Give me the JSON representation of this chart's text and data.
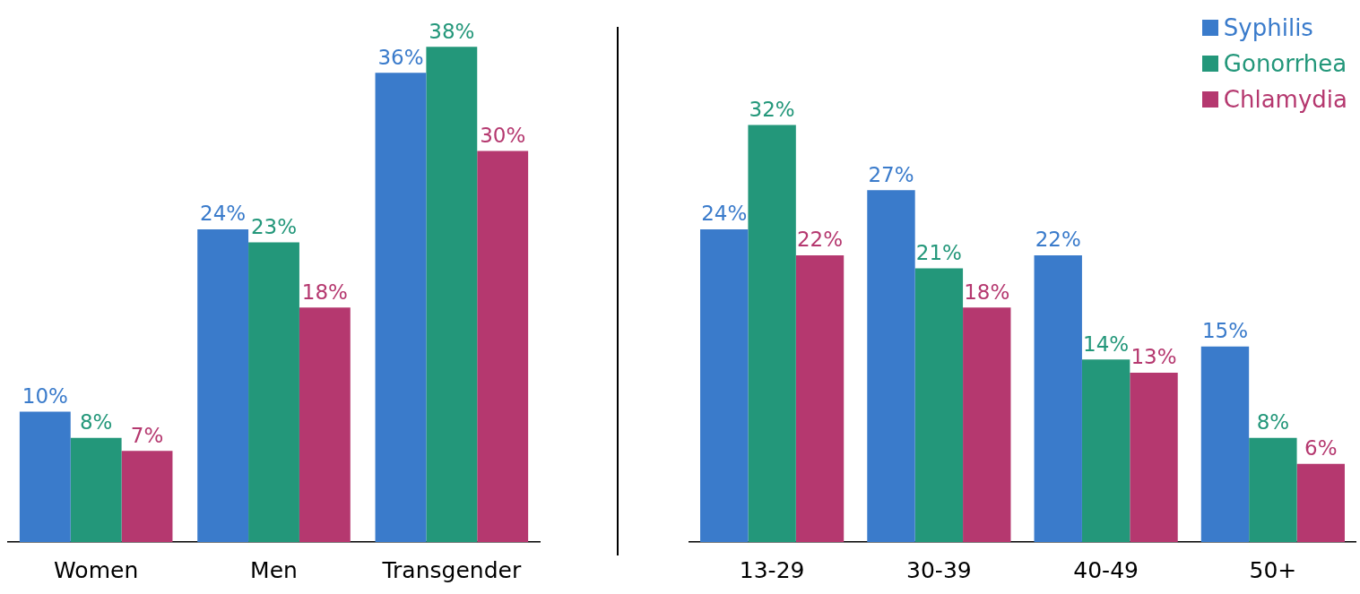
{
  "chart_data": [
    {
      "type": "bar",
      "categories": [
        "Women",
        "Men",
        "Transgender"
      ],
      "series": [
        {
          "color": "#3a7bcb",
          "values": [
            10,
            24,
            36
          ],
          "value_labels": [
            "10%",
            "24%",
            "36%"
          ]
        },
        {
          "color": "#23977a",
          "values": [
            8,
            23,
            38
          ],
          "value_labels": [
            "8%",
            "23%",
            "38%"
          ]
        },
        {
          "color": "#b5386f",
          "values": [
            7,
            18,
            30
          ],
          "value_labels": [
            "7%",
            "18%",
            "30%"
          ]
        }
      ],
      "legend": false
    },
    {
      "type": "bar",
      "categories": [
        "13-29",
        "30-39",
        "40-49",
        "50+"
      ],
      "series": [
        {
          "name": "Syphilis",
          "color": "#3a7bcb",
          "values": [
            24,
            27,
            22,
            15
          ],
          "value_labels": [
            "24%",
            "27%",
            "22%",
            "15%"
          ]
        },
        {
          "name": "Gonorrhea",
          "color": "#23977a",
          "values": [
            32,
            21,
            14,
            8
          ],
          "value_labels": [
            "32%",
            "21%",
            "14%",
            "8%"
          ]
        },
        {
          "name": "Chlamydia",
          "color": "#b5386f",
          "values": [
            22,
            18,
            13,
            6
          ],
          "value_labels": [
            "22%",
            "18%",
            "13%",
            "6%"
          ]
        }
      ],
      "legend": "top right"
    }
  ]
}
